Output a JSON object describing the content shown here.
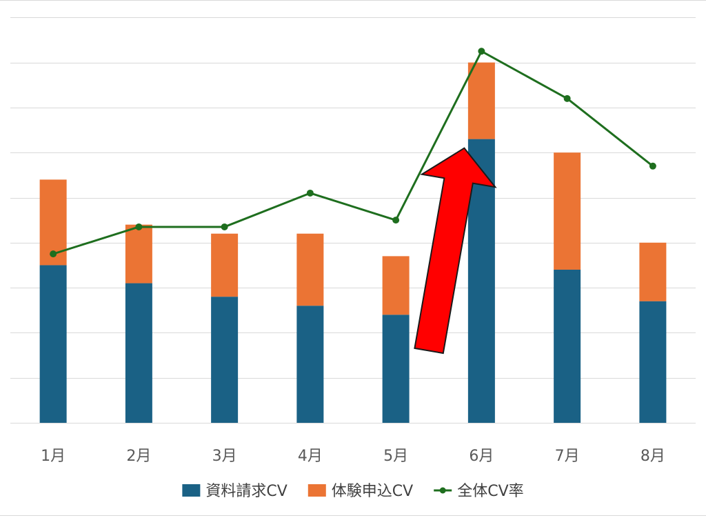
{
  "chart_data": {
    "type": "bar",
    "stacked": true,
    "categories": [
      "1月",
      "2月",
      "3月",
      "4月",
      "5月",
      "6月",
      "7月",
      "8月"
    ],
    "series": [
      {
        "name": "資料請求CV",
        "kind": "bar",
        "color": "#1a6185",
        "values": [
          35,
          31,
          28,
          26,
          24,
          63,
          34,
          27
        ]
      },
      {
        "name": "体験申込CV",
        "kind": "bar",
        "color": "#eb7434",
        "values": [
          19,
          13,
          14,
          16,
          13,
          17,
          26,
          13
        ]
      },
      {
        "name": "全体CV率",
        "kind": "line",
        "color": "#1e6e1e",
        "values": [
          37.5,
          43.5,
          43.5,
          51,
          45,
          82.5,
          72,
          57
        ]
      }
    ],
    "ylim": [
      0,
      95
    ],
    "grid": true,
    "legend_position": "bottom",
    "annotation": {
      "type": "arrow",
      "color": "#ff0000",
      "from": {
        "x": "5月",
        "y": 16
      },
      "to": {
        "x": "6月",
        "y": 61
      }
    },
    "title": "",
    "xlabel": "",
    "ylabel": ""
  }
}
